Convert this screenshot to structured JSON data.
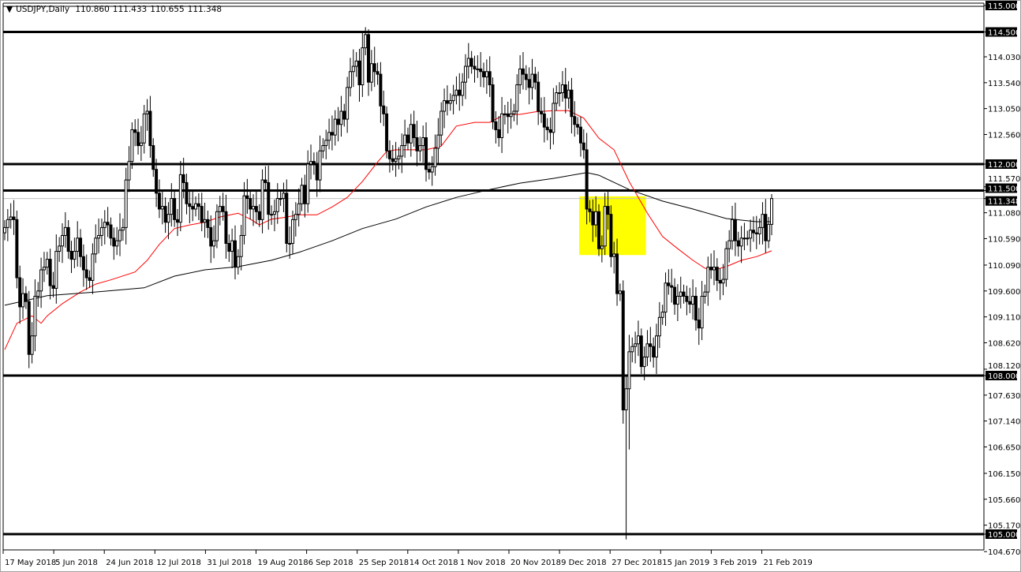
{
  "header": {
    "symbol": "USDJPY,Daily",
    "open": "110.860",
    "high": "111.433",
    "low": "110.655",
    "close": "111.348"
  },
  "colors": {
    "bull_body": "#ffffff",
    "bear_body": "#000000",
    "candle_outline": "#000000",
    "ma_fast": "#ff0000",
    "ma_slow": "#000000",
    "highlight_zone": "#ffff00",
    "bid_line": "#c0c0c0"
  },
  "chart_data": {
    "type": "candlestick",
    "symbol": "USDJPY",
    "timeframe": "Daily",
    "ylim": [
      104.67,
      115.0
    ],
    "grid": false,
    "price_ticks": [
      "115.000",
      "114.500",
      "114.030",
      "113.540",
      "113.050",
      "112.560",
      "112.000",
      "111.570",
      "111.500",
      "111.348",
      "111.080",
      "110.590",
      "110.090",
      "109.600",
      "109.110",
      "108.620",
      "108.120",
      "108.000",
      "107.630",
      "107.140",
      "106.650",
      "106.150",
      "105.660",
      "105.170",
      "105.000",
      "104.670"
    ],
    "highlighted_ticks": [
      "115.000",
      "114.500",
      "112.000",
      "111.500",
      "111.348",
      "108.000",
      "105.000"
    ],
    "date_ticks": [
      "17 May 2018",
      "5 Jun 2018",
      "24 Jun 2018",
      "12 Jul 2018",
      "31 Jul 2018",
      "19 Aug 2018",
      "6 Sep 2018",
      "25 Sep 2018",
      "14 Oct 2018",
      "1 Nov 2018",
      "20 Nov 2018",
      "9 Dec 2018",
      "27 Dec 2018",
      "15 Jan 2019",
      "3 Feb 2019",
      "21 Feb 2019"
    ],
    "closes": [
      110.8,
      110.95,
      111.0,
      110.95,
      109.85,
      109.3,
      109.55,
      109.4,
      108.4,
      108.75,
      109.5,
      109.6,
      110.0,
      110.05,
      110.2,
      109.7,
      109.65,
      110.35,
      110.45,
      110.65,
      110.8,
      110.35,
      110.2,
      110.35,
      110.6,
      110.25,
      110.0,
      109.85,
      109.8,
      110.3,
      110.6,
      110.65,
      110.8,
      110.9,
      110.85,
      110.6,
      110.45,
      110.55,
      110.75,
      110.8,
      111.7,
      112.05,
      112.65,
      112.6,
      112.35,
      112.4,
      112.95,
      113.0,
      112.35,
      111.9,
      111.45,
      111.15,
      111.2,
      110.9,
      111.05,
      111.35,
      110.95,
      110.9,
      111.8,
      111.65,
      111.25,
      111.2,
      111.15,
      111.25,
      111.2,
      110.9,
      110.95,
      110.8,
      110.45,
      110.55,
      111.1,
      111.2,
      111.1,
      110.5,
      110.35,
      110.55,
      110.05,
      110.25,
      110.65,
      111.4,
      111.35,
      111.15,
      111.2,
      111.1,
      110.95,
      111.7,
      111.65,
      111.05,
      111.05,
      111.1,
      111.35,
      111.35,
      111.45,
      110.5,
      110.5,
      110.95,
      111.05,
      111.25,
      111.6,
      111.25,
      112.0,
      112.05,
      112.0,
      111.7,
      112.25,
      112.35,
      112.45,
      112.6,
      112.55,
      112.85,
      112.75,
      113.0,
      112.85,
      113.45,
      113.75,
      113.85,
      113.95,
      113.5,
      114.2,
      114.45,
      113.55,
      113.9,
      113.75,
      113.7,
      113.1,
      112.95,
      112.25,
      112.1,
      112.05,
      112.1,
      112.15,
      112.35,
      112.55,
      112.4,
      112.75,
      112.5,
      112.25,
      112.35,
      112.5,
      111.9,
      111.85,
      111.95,
      112.3,
      112.55,
      113.0,
      113.2,
      113.15,
      113.2,
      113.3,
      113.4,
      113.3,
      113.55,
      113.85,
      114.0,
      113.85,
      113.8,
      113.8,
      113.75,
      113.65,
      113.75,
      113.5,
      112.8,
      112.65,
      112.5,
      112.95,
      112.95,
      112.9,
      112.95,
      113.0,
      113.5,
      113.8,
      113.7,
      113.6,
      113.45,
      113.7,
      113.55,
      113.0,
      112.95,
      112.7,
      112.65,
      112.6,
      113.15,
      113.35,
      113.35,
      113.5,
      113.25,
      113.4,
      112.9,
      112.75,
      112.7,
      112.4,
      112.27,
      111.15,
      111.1,
      110.85,
      111.1,
      110.4,
      110.45,
      111.2,
      111.05,
      110.25,
      110.3,
      109.55,
      109.6,
      107.35,
      107.75,
      108.45,
      108.55,
      108.6,
      108.75,
      108.17,
      108.35,
      108.6,
      108.55,
      108.35,
      108.75,
      109.1,
      109.2,
      109.75,
      109.7,
      109.67,
      109.35,
      109.5,
      109.58,
      109.5,
      109.4,
      109.35,
      109.5,
      109.05,
      108.9,
      109.5,
      109.58,
      110.05,
      110.0,
      110.05,
      109.8,
      109.75,
      109.82,
      110.4,
      110.55,
      110.95,
      110.55,
      110.45,
      110.6,
      110.6,
      110.6,
      110.75,
      110.7,
      110.68,
      110.8,
      111.05,
      110.55,
      110.86,
      111.348
    ],
    "wick_overrides": [
      {
        "bar": 120,
        "high": 114.55
      },
      {
        "bar": 205,
        "low": 104.9
      },
      {
        "bar": 206,
        "low": 106.6
      },
      {
        "bar": 253,
        "open": 110.86,
        "high": 111.433,
        "low": 110.655
      }
    ],
    "series": [
      {
        "kind": "moving-average",
        "color": "#ff0000",
        "points": [
          [
            0,
            108.49
          ],
          [
            4,
            108.99
          ],
          [
            9,
            109.13
          ],
          [
            12,
            108.99
          ],
          [
            14,
            109.13
          ],
          [
            19,
            109.36
          ],
          [
            25,
            109.58
          ],
          [
            30,
            109.73
          ],
          [
            35,
            109.81
          ],
          [
            43,
            109.96
          ],
          [
            47,
            110.18
          ],
          [
            51,
            110.48
          ],
          [
            56,
            110.78
          ],
          [
            61,
            110.85
          ],
          [
            66,
            110.9
          ],
          [
            71,
            111.0
          ],
          [
            77,
            111.07
          ],
          [
            81,
            110.96
          ],
          [
            84,
            110.85
          ],
          [
            88,
            110.96
          ],
          [
            92,
            110.99
          ],
          [
            97,
            111.04
          ],
          [
            103,
            111.04
          ],
          [
            108,
            111.19
          ],
          [
            113,
            111.37
          ],
          [
            118,
            111.67
          ],
          [
            123,
            112.04
          ],
          [
            126,
            112.24
          ],
          [
            129,
            112.27
          ],
          [
            134,
            112.27
          ],
          [
            139,
            112.27
          ],
          [
            144,
            112.34
          ],
          [
            149,
            112.72
          ],
          [
            155,
            112.79
          ],
          [
            160,
            112.79
          ],
          [
            165,
            112.94
          ],
          [
            170,
            112.94
          ],
          [
            175,
            112.99
          ],
          [
            181,
            113.01
          ],
          [
            186,
            113.01
          ],
          [
            191,
            112.87
          ],
          [
            196,
            112.49
          ],
          [
            201,
            112.27
          ],
          [
            206,
            111.67
          ],
          [
            212,
            111.07
          ],
          [
            217,
            110.63
          ],
          [
            222,
            110.4
          ],
          [
            227,
            110.18
          ],
          [
            231,
            110.03
          ],
          [
            234,
            110.0
          ],
          [
            238,
            110.06
          ],
          [
            243,
            110.18
          ],
          [
            248,
            110.25
          ],
          [
            253,
            110.36
          ]
        ]
      },
      {
        "kind": "moving-average",
        "color": "#000000",
        "points": [
          [
            0,
            109.33
          ],
          [
            14,
            109.51
          ],
          [
            30,
            109.58
          ],
          [
            46,
            109.66
          ],
          [
            56,
            109.88
          ],
          [
            66,
            110.0
          ],
          [
            77,
            110.06
          ],
          [
            88,
            110.18
          ],
          [
            97,
            110.33
          ],
          [
            108,
            110.55
          ],
          [
            118,
            110.78
          ],
          [
            129,
            110.96
          ],
          [
            139,
            111.19
          ],
          [
            149,
            111.37
          ],
          [
            160,
            111.52
          ],
          [
            170,
            111.64
          ],
          [
            181,
            111.73
          ],
          [
            192,
            111.84
          ],
          [
            196,
            111.79
          ],
          [
            206,
            111.52
          ],
          [
            217,
            111.3
          ],
          [
            227,
            111.15
          ],
          [
            238,
            110.97
          ],
          [
            248,
            110.91
          ],
          [
            253,
            110.91
          ]
        ]
      }
    ],
    "horizontal_levels": [
      114.5,
      112.0,
      111.5,
      108.0,
      105.0
    ],
    "bid_level": 111.348,
    "highlight_zone": {
      "from_bar": 190,
      "to_bar": 211,
      "price_high": 111.39,
      "price_low": 110.28
    }
  }
}
